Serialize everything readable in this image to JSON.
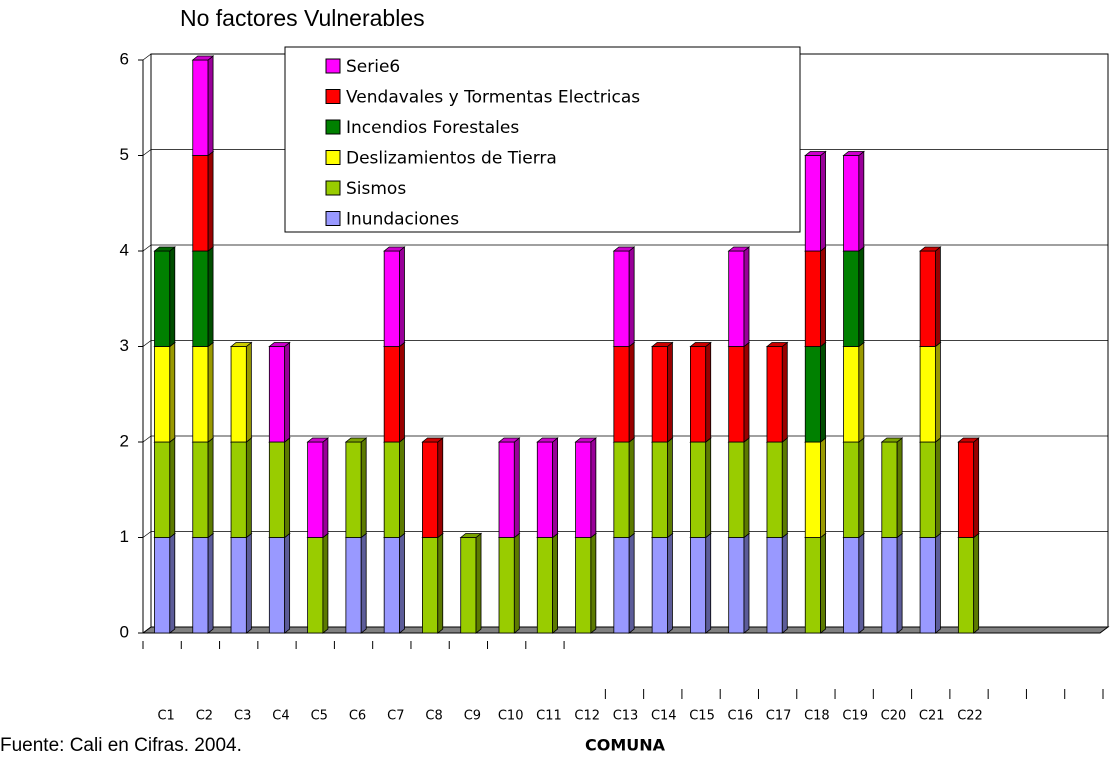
{
  "chart_data": {
    "type": "stacked_bar",
    "title": "No factores Vulnerables",
    "xlabel": "COMUNA",
    "source": "Fuente: Cali en Cifras. 2004.",
    "categories": [
      "C1",
      "C2",
      "C3",
      "C4",
      "C5",
      "C6",
      "C7",
      "C8",
      "C9",
      "C10",
      "C11",
      "C12",
      "C13",
      "C14",
      "C15",
      "C16",
      "C17",
      "C18",
      "C19",
      "C20",
      "C21",
      "C22"
    ],
    "series": [
      {
        "name": "Inundaciones",
        "color": "#9999ff",
        "values": [
          1,
          1,
          1,
          1,
          0,
          1,
          1,
          0,
          0,
          0,
          0,
          0,
          1,
          1,
          1,
          1,
          1,
          0,
          1,
          1,
          1,
          0
        ]
      },
      {
        "name": "Sismos",
        "color": "#99cc00",
        "values": [
          1,
          1,
          1,
          1,
          1,
          1,
          1,
          1,
          1,
          1,
          1,
          1,
          1,
          1,
          1,
          1,
          1,
          1,
          1,
          1,
          1,
          1
        ]
      },
      {
        "name": "Deslizamientos de Tierra",
        "color": "#ffff00",
        "values": [
          1,
          1,
          1,
          0,
          0,
          0,
          0,
          0,
          0,
          0,
          0,
          0,
          0,
          0,
          0,
          0,
          0,
          1,
          1,
          0,
          1,
          0
        ]
      },
      {
        "name": "Incendios Forestales",
        "color": "#008000",
        "values": [
          1,
          1,
          0,
          0,
          0,
          0,
          0,
          0,
          0,
          0,
          0,
          0,
          0,
          0,
          0,
          0,
          0,
          1,
          1,
          0,
          0,
          0
        ]
      },
      {
        "name": "Vendavales y Tormentas Electricas",
        "color": "#ff0000",
        "values": [
          0,
          1,
          0,
          0,
          0,
          0,
          1,
          1,
          0,
          0,
          0,
          0,
          1,
          1,
          1,
          1,
          1,
          1,
          0,
          0,
          1,
          1
        ]
      },
      {
        "name": "Serie6",
        "color": "#ff00ff",
        "values": [
          0,
          1,
          0,
          1,
          1,
          0,
          1,
          0,
          0,
          1,
          1,
          1,
          1,
          0,
          0,
          1,
          0,
          1,
          1,
          0,
          0,
          0
        ]
      }
    ],
    "ylim": [
      0,
      6
    ],
    "yticks": [
      0,
      1,
      2,
      3,
      4,
      5,
      6
    ],
    "grid": true
  }
}
